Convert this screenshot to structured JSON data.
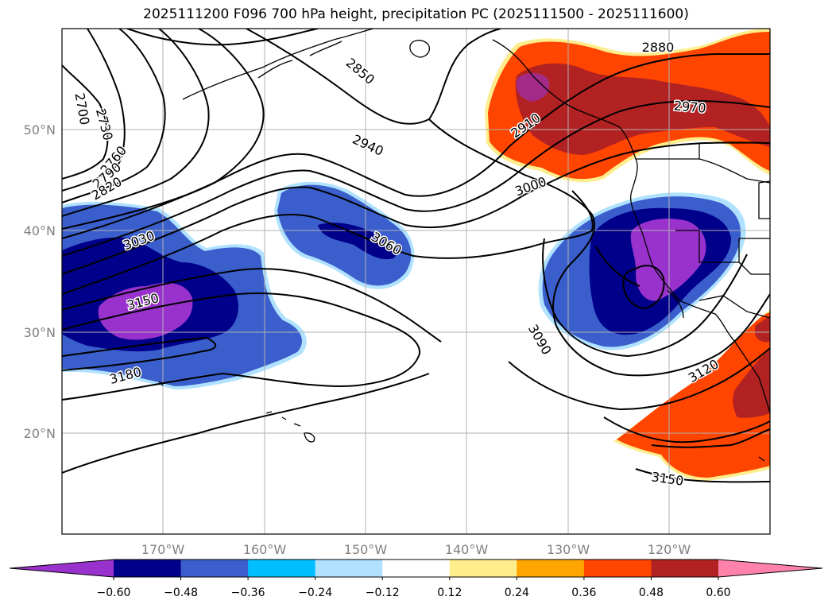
{
  "title": "2025111200 F096 700 hPa height, precipitation PC (2025111500 - 2025111600)",
  "map": {
    "lon_labels": [
      "170°W",
      "160°W",
      "150°W",
      "140°W",
      "130°W",
      "120°W"
    ],
    "lat_labels": [
      "50°N",
      "40°N",
      "30°N",
      "20°N"
    ],
    "contour_labels": [
      "2880",
      "2850",
      "2700",
      "2730",
      "2760",
      "2790",
      "2820",
      "2910",
      "2940",
      "2970",
      "3000",
      "3030",
      "3060",
      "3090",
      "3120",
      "3150",
      "3150",
      "3180"
    ]
  },
  "colorbar": {
    "tick_labels": [
      "−0.60",
      "−0.48",
      "−0.36",
      "−0.24",
      "−0.12",
      "0.12",
      "0.24",
      "0.36",
      "0.48",
      "0.60"
    ],
    "colors": [
      "#9932cc",
      "#00008b",
      "#3a5fcd",
      "#00bfff",
      "#b0e2ff",
      "#ffffff",
      "#ffec8b",
      "#ffa500",
      "#ff4500",
      "#b22222",
      "#ff82ab"
    ]
  }
}
